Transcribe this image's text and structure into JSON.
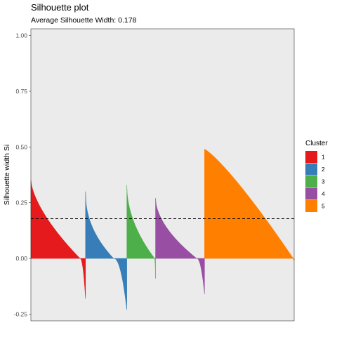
{
  "chart_data": {
    "type": "area",
    "title": "Silhouette plot",
    "subtitle": "Average Silhouette Width: 0.178",
    "ylabel": "Silhouette width Si",
    "xlabel": "",
    "ylim": [
      -0.28,
      1.03
    ],
    "yticks": [
      {
        "value": -0.25,
        "label": "-0.25"
      },
      {
        "value": 0.0,
        "label": "0.00"
      },
      {
        "value": 0.25,
        "label": "0.25"
      },
      {
        "value": 0.5,
        "label": "0.50"
      },
      {
        "value": 0.75,
        "label": "0.75"
      },
      {
        "value": 1.0,
        "label": "1.00"
      }
    ],
    "average_silhouette_width": 0.178,
    "reference_line": {
      "value": 0.178,
      "style": "dashed"
    },
    "grid": false,
    "legend": {
      "title": "Cluster",
      "placement": "right",
      "entries": [
        {
          "label": "1",
          "color": "#E41A1C"
        },
        {
          "label": "2",
          "color": "#377EB8"
        },
        {
          "label": "3",
          "color": "#4DAF4A"
        },
        {
          "label": "4",
          "color": "#984EA3"
        },
        {
          "label": "5",
          "color": "#FF7F00"
        }
      ]
    },
    "series": [
      {
        "name": "1",
        "color": "#E41A1C",
        "count": 78,
        "max": 0.35,
        "min": -0.18,
        "zero_fraction": 0.9,
        "curve": 0.65
      },
      {
        "name": "2",
        "color": "#377EB8",
        "count": 59,
        "max": 0.3,
        "min": -0.23,
        "zero_fraction": 0.68,
        "curve": 0.45
      },
      {
        "name": "3",
        "color": "#4DAF4A",
        "count": 41,
        "max": 0.33,
        "min": -0.09,
        "zero_fraction": 0.97,
        "curve": 0.5
      },
      {
        "name": "4",
        "color": "#984EA3",
        "count": 70,
        "max": 0.27,
        "min": -0.16,
        "zero_fraction": 0.84,
        "curve": 0.55
      },
      {
        "name": "5",
        "color": "#FF7F00",
        "count": 128,
        "max": 0.49,
        "min": -0.01,
        "zero_fraction": 0.99,
        "curve": 1.2
      }
    ]
  }
}
